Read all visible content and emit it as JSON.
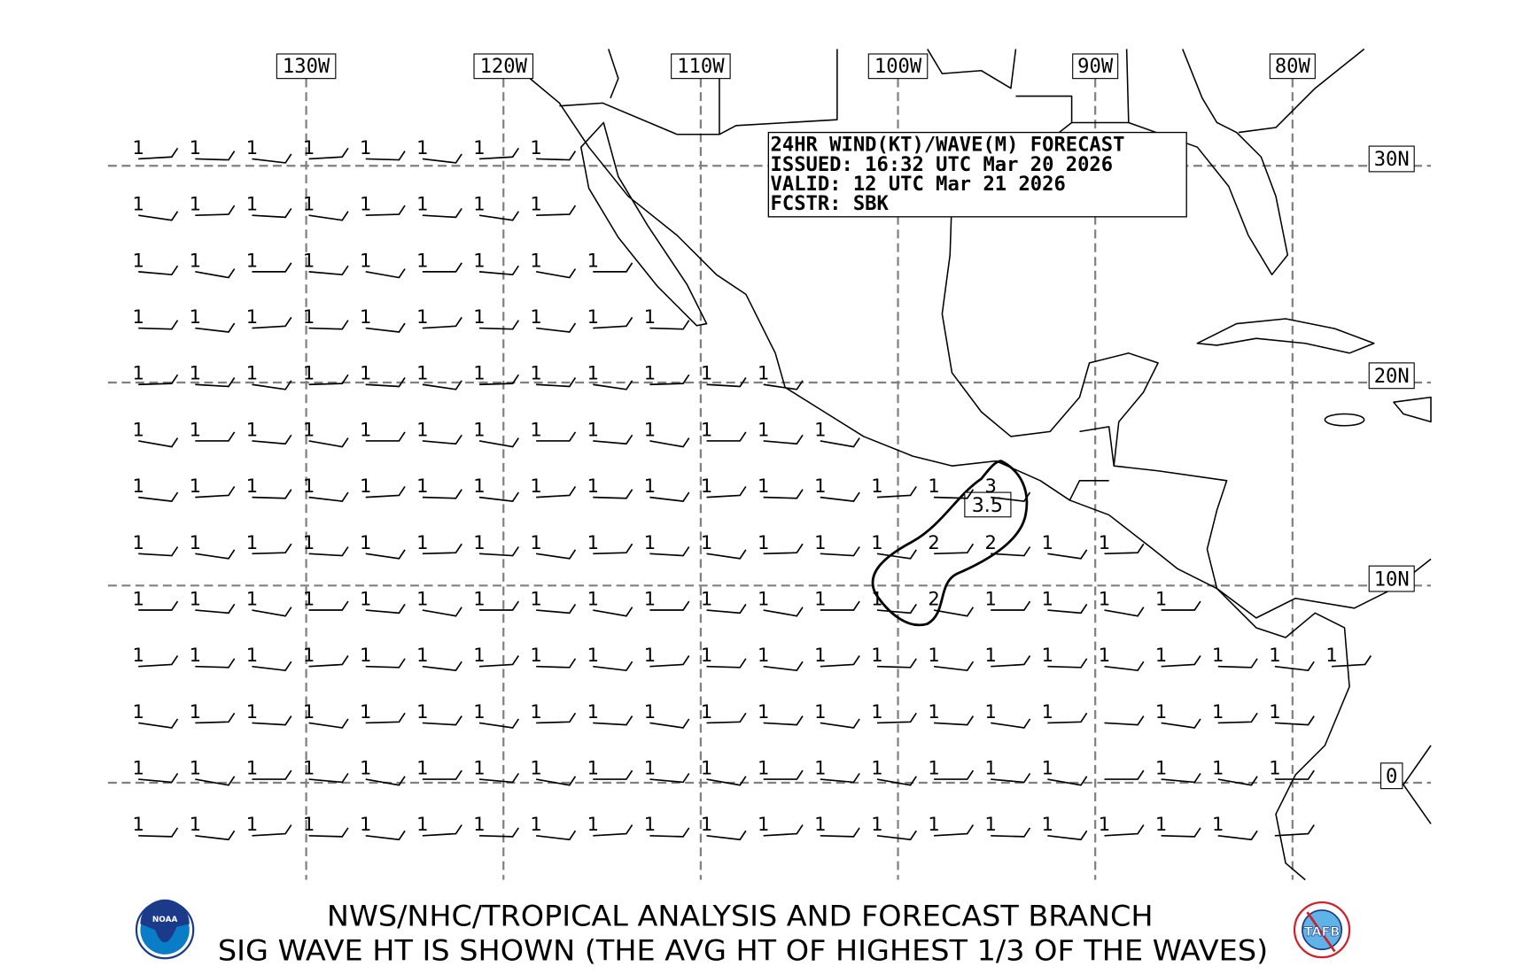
{
  "forecast_box": {
    "line1": "24HR WIND(KT)/WAVE(M) FORECAST",
    "line2": "ISSUED: 16:32 UTC Mar 20 2026",
    "line3": "VALID: 12 UTC Mar 21 2026",
    "line4": "FCSTR: SBK"
  },
  "longitude_labels": [
    "130W",
    "120W",
    "110W",
    "100W",
    "90W",
    "80W"
  ],
  "latitude_labels": [
    "30N",
    "20N",
    "10N",
    "0"
  ],
  "contour_label": "3.5",
  "wave_heights_grid": [
    [
      "1",
      "1",
      "1",
      "1",
      "1",
      "1",
      "1",
      "1"
    ],
    [
      "1",
      "1",
      "1",
      "1",
      "1",
      "1",
      "1",
      "1"
    ],
    [
      "1",
      "1",
      "1",
      "1",
      "1",
      "1",
      "1",
      "1",
      "1"
    ],
    [
      "1",
      "1",
      "1",
      "1",
      "1",
      "1",
      "1",
      "1",
      "1",
      "1"
    ],
    [
      "1",
      "1",
      "1",
      "1",
      "1",
      "1",
      "1",
      "1",
      "1",
      "1",
      "1",
      "1"
    ],
    [
      "1",
      "1",
      "1",
      "1",
      "1",
      "1",
      "1",
      "1",
      "1",
      "1",
      "1",
      "1",
      "1"
    ],
    [
      "1",
      "1",
      "1",
      "1",
      "1",
      "1",
      "1",
      "1",
      "1",
      "1",
      "1",
      "1",
      "1",
      "1",
      "1",
      "3"
    ],
    [
      "1",
      "1",
      "1",
      "1",
      "1",
      "1",
      "1",
      "1",
      "1",
      "1",
      "1",
      "1",
      "1",
      "1",
      "2",
      "2",
      "1",
      "1"
    ],
    [
      "1",
      "1",
      "1",
      "1",
      "1",
      "1",
      "1",
      "1",
      "1",
      "1",
      "1",
      "1",
      "1",
      "1",
      "2",
      "1",
      "1",
      "1",
      "1"
    ],
    [
      "1",
      "1",
      "1",
      "1",
      "1",
      "1",
      "1",
      "1",
      "1",
      "1",
      "1",
      "1",
      "1",
      "1",
      "1",
      "1",
      "1",
      "1",
      "1",
      "1",
      "1",
      "1"
    ],
    [
      "1",
      "1",
      "1",
      "1",
      "1",
      "1",
      "1",
      "1",
      "1",
      "1",
      "1",
      "1",
      "1",
      "1",
      "1",
      "1",
      "1",
      "",
      "1",
      "1",
      "1"
    ],
    [
      "1",
      "1",
      "1",
      "1",
      "1",
      "1",
      "1",
      "1",
      "1",
      "1",
      "1",
      "1",
      "1",
      "1",
      "1",
      "1",
      "1",
      "",
      "1",
      "1",
      "1"
    ],
    [
      "1",
      "1",
      "1",
      "1",
      "1",
      "1",
      "1",
      "1",
      "1",
      "1",
      "1",
      "1",
      "1",
      "1",
      "1",
      "1",
      "1",
      "1",
      "1",
      "1",
      ""
    ]
  ],
  "footer": {
    "line1": "NWS/NHC/TROPICAL ANALYSIS AND FORECAST BRANCH",
    "line2": "SIG WAVE HT IS SHOWN (THE AVG HT OF HIGHEST 1/3 OF THE WAVES)"
  },
  "logos": {
    "left": "NOAA",
    "right": "TAFB"
  },
  "colors": {
    "grid": "#808080",
    "noaa_blue": "#0a7dc7",
    "noaa_navy": "#1b3a8a",
    "tafb_red": "#d0202a"
  }
}
